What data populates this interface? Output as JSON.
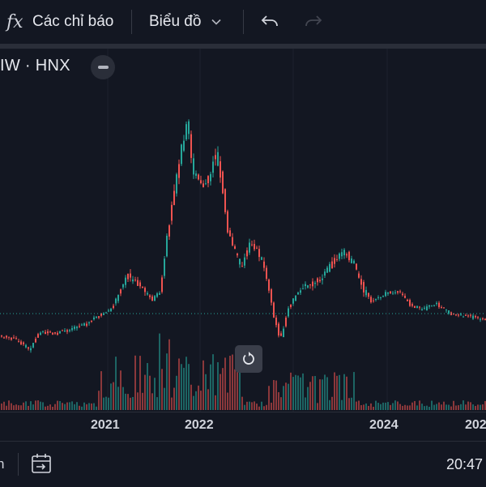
{
  "toolbar": {
    "fx_icon": "fx",
    "indicators_label": "Các chỉ báo",
    "chart_type_label": "Biểu đồ",
    "icons": [
      "function-icon",
      "chevron-down-icon",
      "undo-icon",
      "redo-icon"
    ]
  },
  "symbol_label": "IW · HNX",
  "x_axis": {
    "labels": [
      "2021",
      "2022",
      "2024",
      "202"
    ]
  },
  "bottom": {
    "left_text": "n",
    "time": "20:47",
    "icons": [
      "go-to-date-icon"
    ]
  },
  "colors": {
    "background": "#131722",
    "up": "#26a69a",
    "down": "#ef5350",
    "price_line": "#26a69a"
  }
}
